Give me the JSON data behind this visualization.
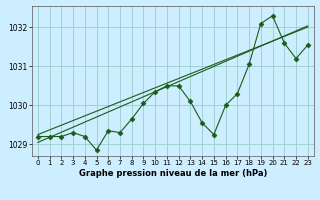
{
  "x": [
    0,
    1,
    2,
    3,
    4,
    5,
    6,
    7,
    8,
    9,
    10,
    11,
    12,
    13,
    14,
    15,
    16,
    17,
    18,
    19,
    20,
    21,
    22,
    23
  ],
  "pressure": [
    1029.2,
    1029.2,
    1029.2,
    1029.3,
    1029.2,
    1028.85,
    1029.35,
    1029.3,
    1029.65,
    1030.05,
    1030.35,
    1030.5,
    1030.5,
    1030.1,
    1029.55,
    1029.25,
    1030.0,
    1030.3,
    1031.05,
    1032.1,
    1032.3,
    1031.6,
    1031.2,
    1031.55
  ],
  "trend1": [
    1029.05,
    1029.18,
    1029.31,
    1029.44,
    1029.57,
    1029.7,
    1029.83,
    1029.96,
    1030.09,
    1030.22,
    1030.35,
    1030.48,
    1030.61,
    1030.74,
    1030.87,
    1031.0,
    1031.13,
    1031.26,
    1031.39,
    1031.52,
    1031.65,
    1031.78,
    1031.91,
    1032.04
  ],
  "trend2": [
    1029.25,
    1029.37,
    1029.49,
    1029.61,
    1029.73,
    1029.85,
    1029.97,
    1030.09,
    1030.21,
    1030.33,
    1030.45,
    1030.57,
    1030.69,
    1030.81,
    1030.93,
    1031.05,
    1031.17,
    1031.29,
    1031.41,
    1031.53,
    1031.65,
    1031.77,
    1031.89,
    1032.01
  ],
  "line_color": "#1a5c1a",
  "bg_color": "#cceeff",
  "grid_color": "#99cccc",
  "xlabel": "Graphe pression niveau de la mer (hPa)",
  "xlim_min": -0.5,
  "xlim_max": 23.5,
  "ylim_min": 1028.7,
  "ylim_max": 1032.55,
  "yticks": [
    1029,
    1030,
    1031,
    1032
  ],
  "xticks": [
    0,
    1,
    2,
    3,
    4,
    5,
    6,
    7,
    8,
    9,
    10,
    11,
    12,
    13,
    14,
    15,
    16,
    17,
    18,
    19,
    20,
    21,
    22,
    23
  ],
  "marker": "D",
  "markersize": 2.5,
  "linewidth": 0.8,
  "tick_fontsize": 5.0,
  "xlabel_fontsize": 6.0
}
